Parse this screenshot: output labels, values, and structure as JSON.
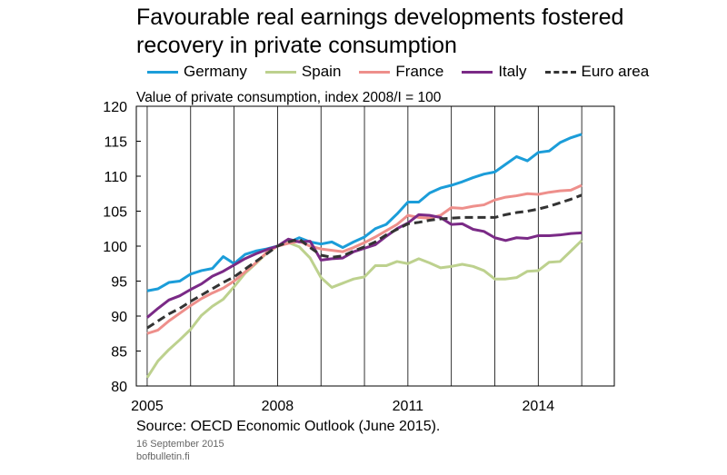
{
  "title_line1": "Favourable real earnings developments fostered",
  "title_line2": "recovery in private consumption",
  "subtitle": "Value of private consumption, index 2008/I = 100",
  "source": "Source: OECD Economic Outlook (June 2015).",
  "date": "16 September 2015",
  "site": "bofbulletin.fi",
  "chart_data": {
    "type": "line",
    "x_start": 2005.0,
    "x_step": 0.25,
    "xlim": [
      2004.75,
      2015.75
    ],
    "ylim": [
      80,
      120
    ],
    "yticks": [
      80,
      85,
      90,
      95,
      100,
      105,
      110,
      115,
      120
    ],
    "xticks": [
      2005,
      2008,
      2011,
      2014
    ],
    "grid": "vertical",
    "legend": "top",
    "series": [
      {
        "name": "Germany",
        "color": "#1b9dd9",
        "dash": "",
        "values": [
          93.6,
          93.9,
          94.8,
          95.0,
          96.0,
          96.5,
          96.8,
          98.5,
          97.5,
          98.8,
          99.3,
          99.6,
          100.0,
          100.5,
          101.2,
          100.6,
          100.3,
          100.6,
          99.8,
          100.6,
          101.3,
          102.5,
          103.1,
          104.6,
          106.3,
          106.3,
          107.6,
          108.3,
          108.7,
          109.2,
          109.8,
          110.3,
          110.6,
          111.7,
          112.8,
          112.2,
          113.4,
          113.6,
          114.8,
          115.5,
          116.0
        ]
      },
      {
        "name": "Spain",
        "color": "#bdd18e",
        "dash": "",
        "values": [
          81.2,
          83.6,
          85.2,
          86.6,
          88.1,
          90.1,
          91.4,
          92.4,
          94.2,
          96.1,
          97.5,
          99.0,
          100.0,
          100.5,
          99.9,
          98.3,
          95.5,
          94.1,
          94.7,
          95.3,
          95.6,
          97.2,
          97.2,
          97.8,
          97.5,
          98.2,
          97.6,
          96.9,
          97.1,
          97.4,
          97.1,
          96.5,
          95.3,
          95.3,
          95.5,
          96.4,
          96.5,
          97.7,
          97.8,
          99.3,
          100.8
        ]
      },
      {
        "name": "France",
        "color": "#ee8f8b",
        "dash": "",
        "values": [
          87.5,
          88.0,
          89.3,
          90.4,
          91.5,
          92.5,
          93.3,
          94.0,
          95.0,
          96.3,
          97.6,
          99.1,
          100.0,
          100.4,
          100.7,
          100.0,
          99.6,
          99.4,
          99.2,
          99.8,
          100.5,
          101.3,
          102.2,
          103.1,
          104.4,
          104.1,
          104.0,
          104.4,
          105.5,
          105.4,
          105.7,
          105.9,
          106.6,
          107.0,
          107.2,
          107.5,
          107.4,
          107.7,
          107.9,
          108.0,
          108.7
        ]
      },
      {
        "name": "Italy",
        "color": "#7a2a86",
        "dash": "",
        "values": [
          89.8,
          91.1,
          92.3,
          92.9,
          93.8,
          94.6,
          95.7,
          96.4,
          97.3,
          98.2,
          98.9,
          99.5,
          100.0,
          101.0,
          100.6,
          100.7,
          98.0,
          98.2,
          98.3,
          99.2,
          99.7,
          100.2,
          101.4,
          102.5,
          103.3,
          104.5,
          104.4,
          104.1,
          103.1,
          103.2,
          102.4,
          102.1,
          101.2,
          100.8,
          101.2,
          101.1,
          101.5,
          101.5,
          101.6,
          101.8,
          101.9
        ]
      },
      {
        "name": "Euro area",
        "color": "#333333",
        "dash": "9,5",
        "values": [
          88.3,
          89.3,
          90.3,
          91.1,
          92.1,
          93.0,
          93.9,
          94.8,
          95.6,
          96.7,
          97.8,
          98.9,
          100.0,
          100.6,
          101.0,
          99.8,
          98.7,
          98.4,
          98.6,
          99.3,
          99.9,
          100.6,
          101.6,
          102.4,
          103.2,
          103.4,
          103.7,
          103.9,
          104.0,
          104.1,
          104.1,
          104.1,
          104.1,
          104.5,
          104.8,
          105.0,
          105.3,
          105.7,
          106.2,
          106.7,
          107.3
        ]
      }
    ]
  }
}
